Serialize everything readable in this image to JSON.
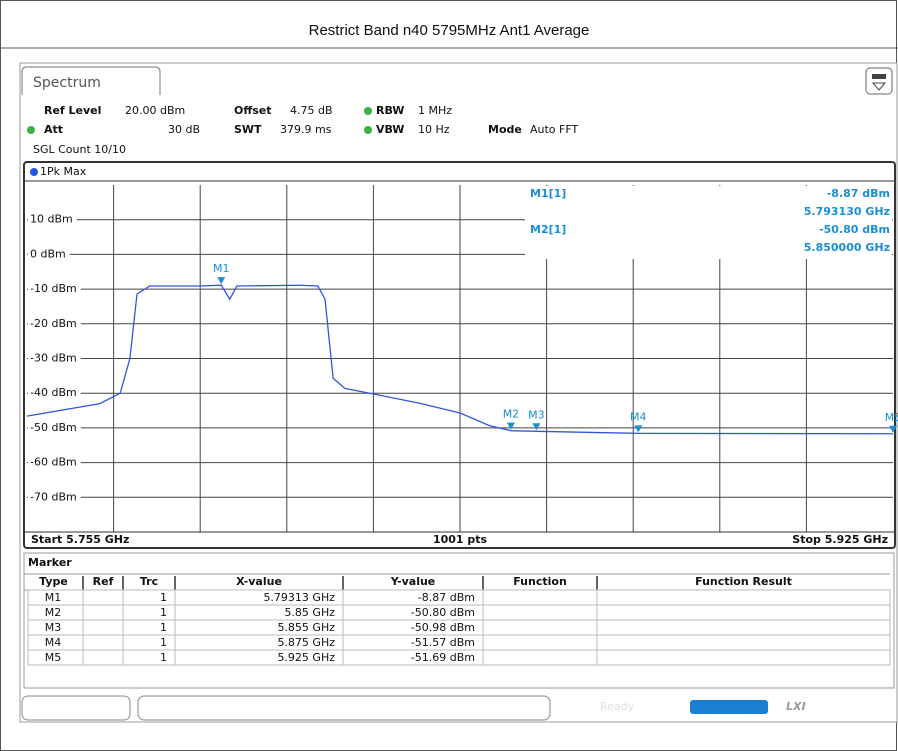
{
  "header": {
    "title": "Restrict Band n40 5795MHz Ant1 Average"
  },
  "tab": "Spectrum",
  "settings": {
    "ref_level": {
      "label": "Ref Level",
      "value": "20.00 dBm"
    },
    "offset": {
      "label": "Offset",
      "value": "4.75 dB"
    },
    "rbw": {
      "label": "RBW",
      "value": "1 MHz"
    },
    "att": {
      "label": "Att",
      "value": "30 dB"
    },
    "swt": {
      "label": "SWT",
      "value": "379.9 ms"
    },
    "vbw": {
      "label": "VBW",
      "value": "10 Hz"
    },
    "mode": {
      "label": "Mode",
      "value": "Auto FFT"
    },
    "count": "SGL Count 10/10"
  },
  "chart_data": {
    "type": "line",
    "xlim": [
      5.755,
      5.925
    ],
    "ylim": [
      -80,
      20
    ],
    "yticks": [
      {
        "value": 10,
        "label": "10 dBm"
      },
      {
        "value": 0,
        "label": "0 dBm"
      },
      {
        "value": -10,
        "label": "-10 dBm"
      },
      {
        "value": -20,
        "label": "-20 dBm"
      },
      {
        "value": -30,
        "label": "-30 dBm"
      },
      {
        "value": -40,
        "label": "-40 dBm"
      },
      {
        "value": -50,
        "label": "-50 dBm"
      },
      {
        "value": -60,
        "label": "-60 dBm"
      },
      {
        "value": -70,
        "label": "-70 dBm"
      }
    ],
    "grid": true,
    "x": [
      5.755,
      5.7693,
      5.7733,
      5.7752,
      5.7766,
      5.7791,
      5.789,
      5.79313,
      5.7948,
      5.7962,
      5.8086,
      5.8121,
      5.8135,
      5.8151,
      5.8174,
      5.8243,
      5.8321,
      5.84,
      5.8459,
      5.85,
      5.855,
      5.875,
      5.925
    ],
    "series": [
      {
        "name": "1Pk Max",
        "color": "#3355dd",
        "values": [
          -46.6,
          -43,
          -40,
          -30,
          -11.4,
          -9.1,
          -9.1,
          -8.87,
          -12.9,
          -9.1,
          -8.9,
          -9.1,
          -12.9,
          -35.7,
          -38.6,
          -40.6,
          -42.9,
          -45.7,
          -49.4,
          -50.8,
          -50.98,
          -51.57,
          -51.69
        ]
      }
    ],
    "markers": [
      {
        "label": "M1",
        "x": 5.79313,
        "y": -8.87
      },
      {
        "label": "M2",
        "x": 5.85,
        "y": -50.8
      },
      {
        "label": "M3",
        "x": 5.855,
        "y": -50.98
      },
      {
        "label": "M4",
        "x": 5.875,
        "y": -51.57
      },
      {
        "label": "M5",
        "x": 5.925,
        "y": -51.69
      }
    ],
    "marker_color": "#1a8fd6"
  },
  "marker_readout": [
    {
      "name": "M1[1]",
      "level": "-8.87 dBm",
      "freq": "5.793130 GHz"
    },
    {
      "name": "M2[1]",
      "level": "-50.80 dBm",
      "freq": "5.850000 GHz"
    }
  ],
  "footer": {
    "start": "Start 5.755 GHz",
    "points": "1001 pts",
    "stop": "Stop 5.925 GHz"
  },
  "marker_table": {
    "title": "Marker",
    "columns": [
      "Type",
      "Ref",
      "Trc",
      "X-value",
      "Y-value",
      "Function",
      "Function Result"
    ],
    "rows": [
      {
        "type": "M1",
        "trc": 1,
        "x": "5.79313 GHz",
        "y": "-8.87 dBm"
      },
      {
        "type": "M2",
        "trc": 1,
        "x": "5.85 GHz",
        "y": "-50.80 dBm"
      },
      {
        "type": "M3",
        "trc": 1,
        "x": "5.855 GHz",
        "y": "-50.98 dBm"
      },
      {
        "type": "M4",
        "trc": 1,
        "x": "5.875 GHz",
        "y": "-51.57 dBm"
      },
      {
        "type": "M5",
        "trc": 1,
        "x": "5.925 GHz",
        "y": "-51.69 dBm"
      }
    ]
  },
  "status": {
    "state": "Ready",
    "logo": "LXI"
  }
}
